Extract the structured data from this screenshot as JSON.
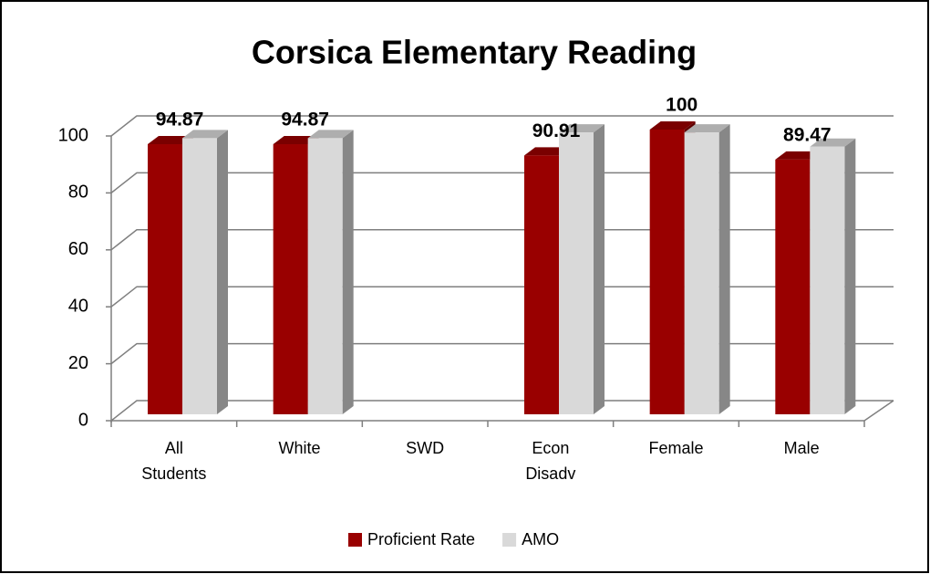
{
  "chart_data": {
    "type": "bar3d",
    "title": "Corsica Elementary Reading",
    "categories": [
      "All Students",
      "White",
      "SWD",
      "Econ Disadv",
      "Female",
      "Male"
    ],
    "series": [
      {
        "name": "Proficient Rate",
        "color": "#990000",
        "values": [
          94.87,
          94.87,
          null,
          90.91,
          100,
          89.47
        ],
        "data_labels": true
      },
      {
        "name": "AMO",
        "color": "#d9d9d9",
        "values": [
          97,
          97,
          null,
          99,
          99,
          94
        ],
        "data_labels": false
      }
    ],
    "ylim": [
      0,
      100
    ],
    "yticks": [
      0,
      20,
      40,
      60,
      80,
      100
    ],
    "grid": true,
    "legend": "bottom"
  }
}
